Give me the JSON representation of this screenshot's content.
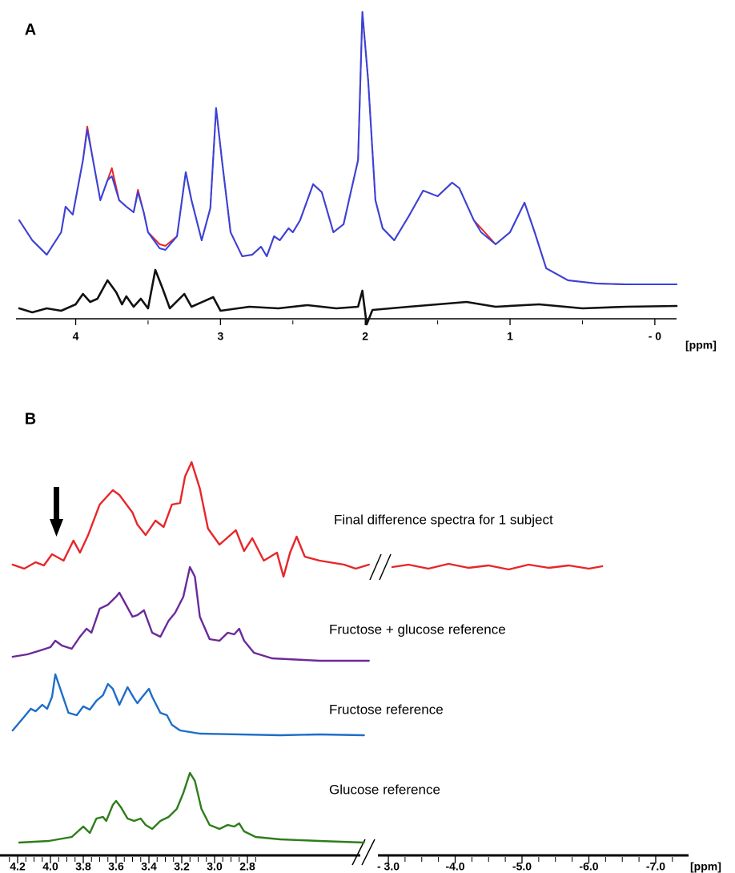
{
  "chart_data": [
    {
      "type": "line",
      "title": "A",
      "x_label": "[ppm]",
      "xlim": [
        4.39,
        -0.15
      ],
      "ylim": [
        -45,
        345
      ],
      "xticks": [
        4,
        3,
        2,
        1,
        {
          "value": 0,
          "label": "- 0"
        }
      ],
      "xminor": [
        3.5,
        2.5,
        1.5,
        0.5
      ],
      "series": [
        {
          "color": "#e8262a",
          "line_width": 2,
          "x": [
            4.39,
            4.3,
            4.2,
            4.1,
            4.07,
            4.02,
            3.95,
            3.92,
            3.88,
            3.83,
            3.78,
            3.75,
            3.7,
            3.65,
            3.6,
            3.57,
            3.53,
            3.5,
            3.42,
            3.38,
            3.3,
            3.24,
            3.2,
            3.13,
            3.07,
            3.03,
            2.99,
            2.93,
            2.85,
            2.78,
            2.72,
            2.68,
            2.63,
            2.59,
            2.53,
            2.5,
            2.45,
            2.36,
            2.3,
            2.22,
            2.15,
            2.1,
            2.05,
            2.02,
            1.98,
            1.93,
            1.88,
            1.8,
            1.7,
            1.6,
            1.5,
            1.4,
            1.35,
            1.25,
            1.2,
            1.1,
            1.0,
            0.9,
            0.83,
            0.75,
            0.6,
            0.4,
            0.2,
            -0.15
          ],
          "values": [
            80,
            55,
            37,
            65,
            97,
            87,
            155,
            197,
            155,
            105,
            130,
            145,
            105,
            97,
            90,
            118,
            90,
            65,
            50,
            48,
            60,
            140,
            105,
            55,
            95,
            220,
            155,
            65,
            35,
            37,
            47,
            35,
            60,
            55,
            70,
            65,
            80,
            125,
            115,
            65,
            75,
            115,
            155,
            340,
            255,
            105,
            70,
            55,
            85,
            117,
            110,
            127,
            120,
            80,
            70,
            50,
            65,
            102,
            65,
            20,
            5,
            1,
            0,
            0
          ]
        },
        {
          "color": "#3344e0",
          "line_width": 2,
          "x": [
            4.39,
            4.3,
            4.2,
            4.1,
            4.07,
            4.02,
            3.95,
            3.92,
            3.88,
            3.83,
            3.78,
            3.75,
            3.7,
            3.65,
            3.6,
            3.57,
            3.53,
            3.5,
            3.42,
            3.38,
            3.3,
            3.24,
            3.2,
            3.13,
            3.07,
            3.03,
            2.99,
            2.93,
            2.85,
            2.78,
            2.72,
            2.68,
            2.63,
            2.59,
            2.53,
            2.5,
            2.45,
            2.36,
            2.3,
            2.22,
            2.15,
            2.1,
            2.05,
            2.02,
            1.98,
            1.93,
            1.88,
            1.8,
            1.7,
            1.6,
            1.5,
            1.4,
            1.35,
            1.25,
            1.2,
            1.1,
            1.0,
            0.9,
            0.83,
            0.75,
            0.6,
            0.4,
            0.2,
            -0.15
          ],
          "values": [
            80,
            55,
            37,
            65,
            97,
            87,
            155,
            193,
            155,
            105,
            130,
            135,
            105,
            97,
            90,
            115,
            90,
            65,
            45,
            43,
            60,
            140,
            105,
            55,
            95,
            220,
            155,
            65,
            35,
            37,
            47,
            35,
            60,
            55,
            70,
            65,
            80,
            125,
            115,
            65,
            75,
            115,
            155,
            340,
            255,
            105,
            70,
            55,
            85,
            117,
            110,
            127,
            120,
            80,
            65,
            50,
            65,
            102,
            65,
            20,
            5,
            1,
            0,
            0
          ]
        },
        {
          "color": "#111111",
          "line_width": 2.6,
          "x": [
            4.39,
            4.3,
            4.2,
            4.1,
            4.0,
            3.95,
            3.9,
            3.85,
            3.78,
            3.72,
            3.68,
            3.65,
            3.6,
            3.55,
            3.5,
            3.45,
            3.4,
            3.35,
            3.25,
            3.2,
            3.05,
            3.0,
            2.8,
            2.6,
            2.4,
            2.2,
            2.05,
            2.02,
            1.99,
            1.95,
            1.7,
            1.5,
            1.3,
            1.1,
            0.8,
            0.5,
            0.2,
            -0.15
          ],
          "values": [
            -30,
            -35,
            -30,
            -33,
            -25,
            -12,
            -22,
            -18,
            5,
            -10,
            -25,
            -15,
            -28,
            -18,
            -30,
            18,
            -5,
            -30,
            -12,
            -28,
            -16,
            -33,
            -28,
            -30,
            -26,
            -30,
            -28,
            -8,
            -50,
            -32,
            -28,
            -25,
            -22,
            -28,
            -25,
            -30,
            -28,
            -27
          ]
        }
      ]
    },
    {
      "type": "line",
      "title": "B",
      "x_label": "[ppm]",
      "xlim": [
        [
          4.3,
          2.05
        ],
        [
          -2.85,
          -7.3
        ]
      ],
      "ylim": [
        0,
        520
      ],
      "xticks": [
        4.2,
        {
          "value": 4,
          "label": "4.0"
        },
        3.8,
        3.6,
        3.4,
        3.2,
        {
          "value": 3,
          "label": "3.0"
        },
        2.8,
        {
          "value": -3,
          "label": "- 3.0"
        },
        {
          "value": -4,
          "label": "-4.0"
        },
        {
          "value": -5,
          "label": "-5.0"
        },
        {
          "value": -6,
          "label": "-6.0"
        },
        {
          "value": -7,
          "label": "-7.0"
        }
      ],
      "xminor": [
        4.25,
        4.15,
        4.1,
        4.05,
        3.95,
        3.9,
        3.85,
        3.75,
        3.7,
        3.65,
        3.55,
        3.5,
        3.45,
        3.35,
        3.3,
        3.25,
        3.15,
        3.1,
        3.05,
        2.95,
        2.9,
        2.85,
        2.75,
        -3.25,
        -3.5,
        -3.75,
        -4.25,
        -4.5,
        -4.75,
        -5.25,
        -5.5,
        -5.75,
        -6.25,
        -6.5,
        -6.75,
        -7.25
      ],
      "series": [
        {
          "name": "Final difference spectra for 1 subject",
          "color": "#e8262a",
          "line_width": 2.4,
          "x": [
            4.23,
            4.16,
            4.09,
            4.04,
            3.99,
            3.92,
            3.86,
            3.82,
            3.77,
            3.7,
            3.62,
            3.58,
            3.5,
            3.47,
            3.42,
            3.36,
            3.31,
            3.26,
            3.21,
            3.18,
            3.14,
            3.09,
            3.04,
            2.97,
            2.87,
            2.82,
            2.77,
            2.7,
            2.62,
            2.58,
            2.54,
            2.5,
            2.45,
            2.36,
            2.21,
            2.14,
            2.06,
            -3.06,
            -3.3,
            -3.6,
            -3.9,
            -4.2,
            -4.5,
            -4.8,
            -5.1,
            -5.4,
            -5.7,
            -6.0,
            -6.2
          ],
          "values": [
            365,
            360,
            368,
            364,
            378,
            370,
            395,
            380,
            402,
            440,
            458,
            452,
            430,
            415,
            402,
            420,
            412,
            440,
            442,
            475,
            493,
            460,
            410,
            390,
            408,
            382,
            398,
            370,
            380,
            350,
            380,
            400,
            375,
            370,
            365,
            360,
            365,
            362,
            365,
            360,
            366,
            361,
            364,
            359,
            365,
            361,
            364,
            360,
            363
          ]
        },
        {
          "name": "Fructose + glucose reference",
          "color": "#6a2a9a",
          "line_width": 2.4,
          "x": [
            4.23,
            4.14,
            4.06,
            4.0,
            3.97,
            3.93,
            3.87,
            3.82,
            3.78,
            3.75,
            3.7,
            3.65,
            3.6,
            3.58,
            3.54,
            3.5,
            3.47,
            3.43,
            3.38,
            3.33,
            3.28,
            3.24,
            3.19,
            3.15,
            3.12,
            3.09,
            3.03,
            2.97,
            2.92,
            2.88,
            2.85,
            2.82,
            2.76,
            2.65,
            2.36,
            2.06
          ],
          "values": [
            250,
            253,
            258,
            262,
            270,
            264,
            260,
            275,
            285,
            280,
            310,
            315,
            325,
            330,
            315,
            300,
            302,
            308,
            280,
            275,
            295,
            305,
            325,
            362,
            350,
            300,
            272,
            270,
            280,
            278,
            285,
            270,
            255,
            248,
            245,
            245
          ]
        },
        {
          "name": "Fructose reference",
          "color": "#1e6ec8",
          "line_width": 2.4,
          "x": [
            4.23,
            4.16,
            4.12,
            4.09,
            4.05,
            4.02,
            3.99,
            3.97,
            3.94,
            3.89,
            3.84,
            3.8,
            3.76,
            3.72,
            3.68,
            3.65,
            3.62,
            3.58,
            3.53,
            3.49,
            3.47,
            3.44,
            3.4,
            3.38,
            3.33,
            3.29,
            3.26,
            3.21,
            3.09,
            2.6,
            2.36,
            2.09
          ],
          "values": [
            158,
            175,
            185,
            182,
            190,
            185,
            200,
            228,
            210,
            180,
            177,
            188,
            184,
            195,
            202,
            216,
            210,
            190,
            212,
            198,
            192,
            200,
            210,
            200,
            180,
            177,
            165,
            158,
            154,
            152,
            153,
            152
          ]
        },
        {
          "name": "Glucose reference",
          "color": "#2e7d1a",
          "line_width": 2.4,
          "x": [
            4.19,
            4.01,
            3.87,
            3.8,
            3.76,
            3.72,
            3.68,
            3.66,
            3.62,
            3.6,
            3.57,
            3.53,
            3.49,
            3.45,
            3.42,
            3.38,
            3.33,
            3.28,
            3.23,
            3.19,
            3.15,
            3.12,
            3.08,
            3.03,
            2.97,
            2.92,
            2.88,
            2.85,
            2.82,
            2.75,
            2.6,
            2.36,
            2.09
          ],
          "values": [
            18,
            20,
            25,
            38,
            30,
            48,
            50,
            45,
            65,
            70,
            62,
            48,
            45,
            48,
            40,
            35,
            45,
            50,
            60,
            80,
            105,
            95,
            60,
            40,
            35,
            40,
            38,
            42,
            32,
            25,
            22,
            20,
            18
          ]
        }
      ]
    }
  ]
}
